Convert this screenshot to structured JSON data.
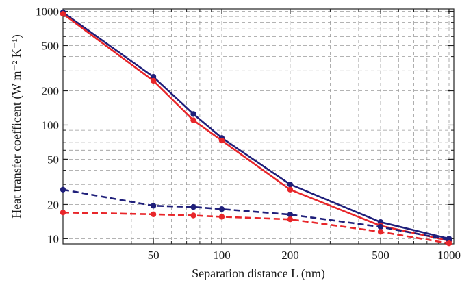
{
  "chart_data": {
    "type": "line",
    "xlabel": "Separation distance L (nm)",
    "ylabel": "Heat transfer coefficent (W m⁻² K⁻¹)",
    "x_scale": "log",
    "y_scale": "log",
    "xlim": [
      20,
      1050
    ],
    "ylim": [
      9,
      1050
    ],
    "grid": true,
    "x_ticks": [
      50,
      100,
      200,
      500,
      1000
    ],
    "y_ticks": [
      10,
      20,
      50,
      100,
      200,
      500,
      1000
    ],
    "series": [
      {
        "color": "#1f1f7a",
        "line_style": "solid",
        "x": [
          20,
          50,
          75,
          100,
          200,
          500,
          1000
        ],
        "y": [
          980,
          265,
          125,
          77,
          30,
          14,
          10
        ]
      },
      {
        "color": "#e8262a",
        "line_style": "solid",
        "x": [
          20,
          50,
          75,
          100,
          200,
          500,
          1000
        ],
        "y": [
          950,
          245,
          110,
          73,
          27,
          13,
          9.6
        ]
      },
      {
        "color": "#1f1f7a",
        "line_style": "dashed",
        "x": [
          20,
          50,
          75,
          100,
          200,
          500,
          1000
        ],
        "y": [
          27,
          19.5,
          19,
          18.2,
          16.3,
          12.7,
          9.8
        ]
      },
      {
        "color": "#e8262a",
        "line_style": "dashed",
        "x": [
          20,
          50,
          75,
          100,
          200,
          500,
          1000
        ],
        "y": [
          17,
          16.4,
          16,
          15.6,
          14.8,
          11.5,
          9.1
        ]
      }
    ]
  }
}
